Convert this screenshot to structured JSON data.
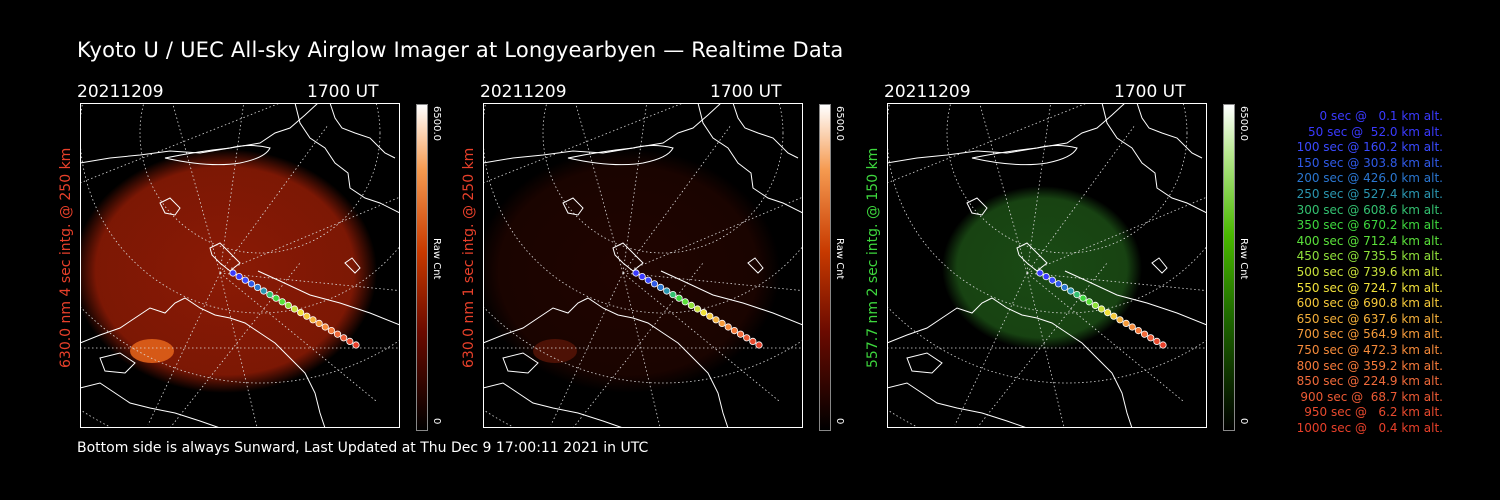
{
  "title": "Kyoto U / UEC All-sky Airglow Imager at Longyearbyen — Realtime Data",
  "footer": "Bottom side is always Sunward, Last Updated at Thu Dec  9 17:00:11 2021 in UTC",
  "panels": [
    {
      "date": "20211209",
      "time": "1700 UT",
      "label": "630.0 nm 4 sec intg. @ 250 km",
      "label_color": "#e8402a",
      "cbar_max": "6500.0",
      "cbar_min": "0",
      "cbar_name": "Raw Cnt",
      "glow": "#8a1a05",
      "palette": "red"
    },
    {
      "date": "20211209",
      "time": "1700 UT",
      "label": "630.0 nm 1 sec intg. @ 250 km",
      "label_color": "#e8402a",
      "cbar_max": "6500.0",
      "cbar_min": "0",
      "cbar_name": "Raw Cnt",
      "glow": "#3a0800",
      "palette": "red"
    },
    {
      "date": "20211209",
      "time": "1700 UT",
      "label": "557.7 nm 2 sec intg. @ 150 km",
      "label_color": "#3dd63d",
      "cbar_max": "6500.0",
      "cbar_min": "0",
      "cbar_name": "Raw Cnt",
      "glow": "#1a4a14",
      "palette": "green"
    }
  ],
  "legend": [
    {
      "text": "0 sec @   0.1 km alt.",
      "color": "#3a3aff"
    },
    {
      "text": "50 sec @  52.0 km alt.",
      "color": "#3a3aff"
    },
    {
      "text": "100 sec @ 160.2 km alt.",
      "color": "#3a4aff"
    },
    {
      "text": "150 sec @ 303.8 km alt.",
      "color": "#2f5ae8"
    },
    {
      "text": "200 sec @ 426.0 km alt.",
      "color": "#2a76d0"
    },
    {
      "text": "250 sec @ 527.4 km alt.",
      "color": "#2a96b0"
    },
    {
      "text": "300 sec @ 608.6 km alt.",
      "color": "#33c070"
    },
    {
      "text": "350 sec @ 670.2 km alt.",
      "color": "#3dd63d"
    },
    {
      "text": "400 sec @ 712.4 km alt.",
      "color": "#5ae03a"
    },
    {
      "text": "450 sec @ 735.5 km alt.",
      "color": "#8ee03a"
    },
    {
      "text": "500 sec @ 739.6 km alt.",
      "color": "#c8e03a"
    },
    {
      "text": "550 sec @ 724.7 km alt.",
      "color": "#f0e03a"
    },
    {
      "text": "600 sec @ 690.8 km alt.",
      "color": "#f5c83a"
    },
    {
      "text": "650 sec @ 637.6 km alt.",
      "color": "#f5b03a"
    },
    {
      "text": "700 sec @ 564.9 km alt.",
      "color": "#f59a3a"
    },
    {
      "text": "750 sec @ 472.3 km alt.",
      "color": "#f58a3a"
    },
    {
      "text": "800 sec @ 359.2 km alt.",
      "color": "#f57a3a"
    },
    {
      "text": "850 sec @ 224.9 km alt.",
      "color": "#f06a3a"
    },
    {
      "text": "900 sec @  68.7 km alt.",
      "color": "#ec5a34"
    },
    {
      "text": "950 sec @   6.2 km alt.",
      "color": "#e84a2e"
    },
    {
      "text": "1000 sec @   0.4 km alt.",
      "color": "#e8402a"
    }
  ]
}
